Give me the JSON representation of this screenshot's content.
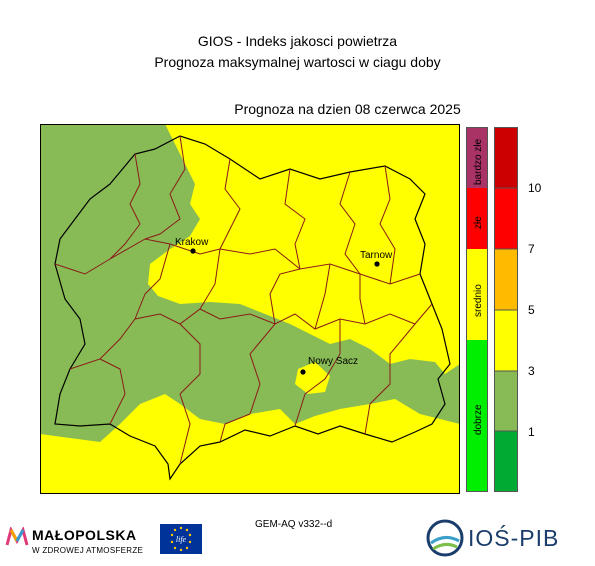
{
  "header": {
    "title_line1": "GIOS - Indeks jakosci powietrza",
    "title_line2": "Prognoza maksymalnej wartosci w ciagu doby",
    "forecast_date": "Prognoza na dzien  08 czerwca 2025"
  },
  "map": {
    "colors": {
      "good": "#88bb55",
      "moderate": "#ffff00",
      "border": "#8b1a1a",
      "frame": "#000000"
    },
    "cities": [
      {
        "label": "Krakow"
      },
      {
        "label": "Tarnow"
      },
      {
        "label": "Nowy Sacz"
      }
    ]
  },
  "legend": {
    "categories": [
      {
        "label": "bardzo złe",
        "color": "#aa3366"
      },
      {
        "label": "złe",
        "color": "#ff0000"
      },
      {
        "label": "srednio",
        "color": "#ffff00"
      },
      {
        "label": "dobrze",
        "color": "#00ee00"
      }
    ],
    "scale_colors": [
      "#cc0000",
      "#ff0000",
      "#ffbb00",
      "#ffff00",
      "#88bb55",
      "#00aa33"
    ],
    "scale_levels": [
      "10",
      "7",
      "5",
      "3",
      "1"
    ]
  },
  "footer": {
    "model": "GEM-AQ v332--d",
    "malopolska_name": "MAŁOPOLSKA",
    "malopolska_tagline": "W ZDROWEJ ATMOSFERZE",
    "eu_text": "life",
    "ios_name": "IOŚ-PIB"
  }
}
